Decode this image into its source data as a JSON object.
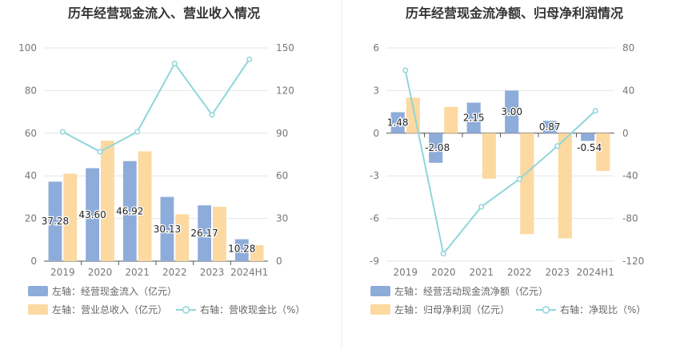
{
  "chart_data": [
    {
      "type": "bar",
      "title": "历年经营现金流入、营业收入情况",
      "categories": [
        "2019",
        "2020",
        "2021",
        "2022",
        "2023",
        "2024H1"
      ],
      "left_axis": {
        "ticks": [
          "0",
          "20",
          "40",
          "60",
          "80",
          "100"
        ],
        "range": [
          0,
          100
        ]
      },
      "right_axis": {
        "ticks": [
          "0",
          "30",
          "60",
          "90",
          "120",
          "150"
        ],
        "range": [
          0,
          150
        ]
      },
      "series": [
        {
          "name": "左轴：经营现金流入（亿元）",
          "axis": "left",
          "type": "bar",
          "color": "#8eacda",
          "values": [
            37.28,
            43.6,
            46.92,
            30.13,
            26.17,
            10.28
          ],
          "labels": [
            "37.28",
            "43.60",
            "46.92",
            "30.13",
            "26.17",
            "10.28"
          ]
        },
        {
          "name": "左轴：营业总收入（亿元）",
          "axis": "left",
          "type": "bar",
          "color": "#fcd9a0",
          "values": [
            41,
            56.5,
            51.5,
            22,
            25.5,
            7.5
          ]
        },
        {
          "name": "右轴：营收现金比（%）",
          "axis": "right",
          "type": "line",
          "color": "#8fd6da",
          "values": [
            91,
            77,
            91,
            139,
            103,
            142
          ]
        }
      ],
      "grid": true
    },
    {
      "type": "bar",
      "title": "历年经营现金流净额、归母净利润情况",
      "categories": [
        "2019",
        "2020",
        "2021",
        "2022",
        "2023",
        "2024H1"
      ],
      "left_axis": {
        "ticks": [
          "-9",
          "-6",
          "-3",
          "0",
          "3",
          "6"
        ],
        "range": [
          -9,
          6
        ]
      },
      "right_axis": {
        "ticks": [
          "-120",
          "-80",
          "-40",
          "0",
          "40",
          "80"
        ],
        "range": [
          -120,
          80
        ]
      },
      "series": [
        {
          "name": "左轴：经营活动现金流净额（亿元）",
          "axis": "left",
          "type": "bar",
          "color": "#8eacda",
          "values": [
            1.48,
            -2.08,
            2.15,
            3.0,
            0.87,
            -0.54
          ],
          "labels": [
            "1.48",
            "-2.08",
            "2.15",
            "3.00",
            "0.87",
            "-0.54"
          ]
        },
        {
          "name": "左轴：归母净利润（亿元）",
          "axis": "left",
          "type": "bar",
          "color": "#fcd9a0",
          "values": [
            2.5,
            1.85,
            -3.2,
            -7.1,
            -7.4,
            -2.65
          ]
        },
        {
          "name": "右轴：净现比（%）",
          "axis": "right",
          "type": "line",
          "color": "#8fd6da",
          "values": [
            59,
            -113,
            -69,
            -43,
            -12,
            21
          ]
        }
      ],
      "grid": true
    }
  ]
}
